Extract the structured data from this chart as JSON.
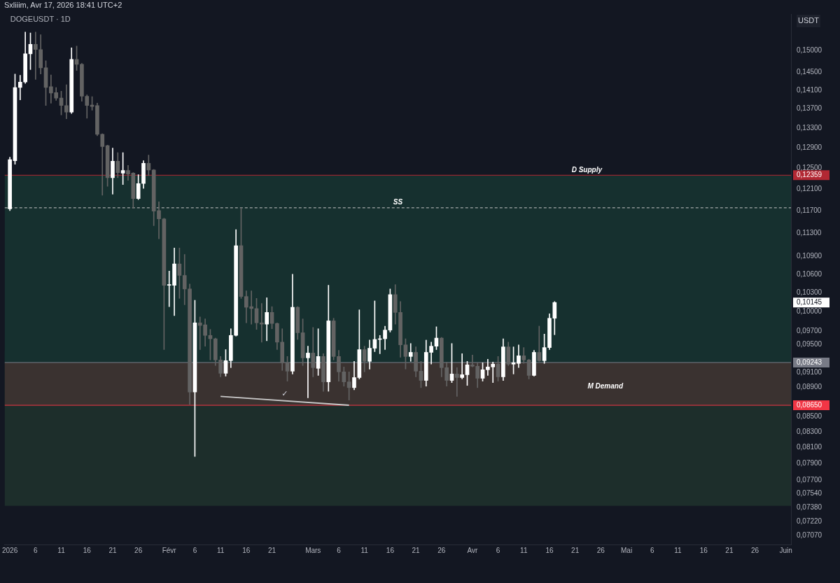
{
  "chart_data": {
    "type": "candlestick",
    "title": "DOGEUSDT · 1D",
    "ylabel": "USDT",
    "annotations": [
      "Sxliiim, Avr 17, 2026 18:41 UTC+2",
      "✓"
    ],
    "x": [
      "2026-01-01",
      "2026-01-02",
      "2026-01-03",
      "2026-01-04",
      "2026-01-05",
      "2026-01-06",
      "2026-01-07",
      "2026-01-08",
      "2026-01-09",
      "2026-01-10",
      "2026-01-11",
      "2026-01-12",
      "2026-01-13",
      "2026-01-14",
      "2026-01-15",
      "2026-01-16",
      "2026-01-17",
      "2026-01-18",
      "2026-01-19",
      "2026-01-20",
      "2026-01-21",
      "2026-01-22",
      "2026-01-23",
      "2026-01-24",
      "2026-01-25",
      "2026-01-26",
      "2026-01-27",
      "2026-01-28",
      "2026-01-29",
      "2026-01-30",
      "2026-01-31",
      "2026-02-01",
      "2026-02-02",
      "2026-02-03",
      "2026-02-04",
      "2026-02-05",
      "2026-02-06",
      "2026-02-07",
      "2026-02-08",
      "2026-02-09",
      "2026-02-10",
      "2026-02-11",
      "2026-02-12",
      "2026-02-13",
      "2026-02-14",
      "2026-02-15",
      "2026-02-16",
      "2026-02-17",
      "2026-02-18",
      "2026-02-19",
      "2026-02-20",
      "2026-02-21",
      "2026-02-22",
      "2026-02-23",
      "2026-02-24",
      "2026-02-25",
      "2026-02-26",
      "2026-02-27",
      "2026-02-28",
      "2026-03-01",
      "2026-03-02",
      "2026-03-03",
      "2026-03-04",
      "2026-03-05",
      "2026-03-06",
      "2026-03-07",
      "2026-03-08",
      "2026-03-09",
      "2026-03-10",
      "2026-03-11",
      "2026-03-12",
      "2026-03-13",
      "2026-03-14",
      "2026-03-15",
      "2026-03-16",
      "2026-03-17",
      "2026-03-18",
      "2026-03-19",
      "2026-03-20",
      "2026-03-21",
      "2026-03-22",
      "2026-03-23",
      "2026-03-24",
      "2026-03-25",
      "2026-03-26",
      "2026-03-27",
      "2026-03-28",
      "2026-03-29",
      "2026-03-30",
      "2026-03-31",
      "2026-04-01",
      "2026-04-02",
      "2026-04-03",
      "2026-04-04",
      "2026-04-05",
      "2026-04-06",
      "2026-04-07",
      "2026-04-08",
      "2026-04-09",
      "2026-04-10",
      "2026-04-11",
      "2026-04-12",
      "2026-04-13",
      "2026-04-14",
      "2026-04-15",
      "2026-04-16",
      "2026-04-17"
    ],
    "ohlc": [
      [
        0.1173,
        0.1271,
        0.117,
        0.1266
      ],
      [
        0.1264,
        0.1446,
        0.1257,
        0.1416
      ],
      [
        0.1416,
        0.1443,
        0.1389,
        0.1428
      ],
      [
        0.1428,
        0.1543,
        0.1425,
        0.1492
      ],
      [
        0.1492,
        0.1541,
        0.1456,
        0.1514
      ],
      [
        0.1514,
        0.1543,
        0.1434,
        0.1502
      ],
      [
        0.1502,
        0.1537,
        0.1446,
        0.146
      ],
      [
        0.146,
        0.1476,
        0.1377,
        0.1416
      ],
      [
        0.1418,
        0.1444,
        0.1382,
        0.1404
      ],
      [
        0.1405,
        0.1416,
        0.1388,
        0.1393
      ],
      [
        0.1393,
        0.1408,
        0.1357,
        0.1377
      ],
      [
        0.1377,
        0.1422,
        0.1349,
        0.1363
      ],
      [
        0.1363,
        0.1506,
        0.136,
        0.1479
      ],
      [
        0.1479,
        0.151,
        0.1454,
        0.1468
      ],
      [
        0.1468,
        0.147,
        0.1386,
        0.1397
      ],
      [
        0.1397,
        0.14,
        0.135,
        0.1377
      ],
      [
        0.1378,
        0.1396,
        0.1367,
        0.1375
      ],
      [
        0.1377,
        0.1382,
        0.1314,
        0.1317
      ],
      [
        0.1317,
        0.1318,
        0.1198,
        0.1292
      ],
      [
        0.1294,
        0.1295,
        0.1215,
        0.1231
      ],
      [
        0.1231,
        0.1289,
        0.12,
        0.1263
      ],
      [
        0.1263,
        0.128,
        0.1231,
        0.1241
      ],
      [
        0.124,
        0.128,
        0.1218,
        0.1245
      ],
      [
        0.1245,
        0.1255,
        0.1226,
        0.1238
      ],
      [
        0.124,
        0.1241,
        0.1174,
        0.1192
      ],
      [
        0.1192,
        0.1237,
        0.119,
        0.122
      ],
      [
        0.122,
        0.1264,
        0.1211,
        0.1259
      ],
      [
        0.1259,
        0.1275,
        0.1235,
        0.1246
      ],
      [
        0.1246,
        0.1247,
        0.1143,
        0.1169
      ],
      [
        0.117,
        0.1186,
        0.112,
        0.1155
      ],
      [
        0.1155,
        0.1156,
        0.0943,
        0.1042
      ],
      [
        0.1042,
        0.1065,
        0.1008,
        0.1043
      ],
      [
        0.1042,
        0.1104,
        0.0994,
        0.1077
      ],
      [
        0.1077,
        0.1104,
        0.1021,
        0.1058
      ],
      [
        0.1058,
        0.1093,
        0.1011,
        0.1036
      ],
      [
        0.1036,
        0.1044,
        0.0866,
        0.0883
      ],
      [
        0.0883,
        0.1018,
        0.0799,
        0.0983
      ],
      [
        0.0983,
        0.0992,
        0.0943,
        0.0979
      ],
      [
        0.098,
        0.0989,
        0.0948,
        0.0964
      ],
      [
        0.0964,
        0.0973,
        0.0928,
        0.0959
      ],
      [
        0.0959,
        0.096,
        0.092,
        0.0928
      ],
      [
        0.0928,
        0.0933,
        0.0904,
        0.0909
      ],
      [
        0.0909,
        0.0943,
        0.0905,
        0.0927
      ],
      [
        0.0927,
        0.0974,
        0.0917,
        0.0964
      ],
      [
        0.0964,
        0.1136,
        0.0963,
        0.1108
      ],
      [
        0.1108,
        0.1175,
        0.1021,
        0.1024
      ],
      [
        0.1024,
        0.1033,
        0.0983,
        0.1007
      ],
      [
        0.1008,
        0.1033,
        0.0981,
        0.1005
      ],
      [
        0.1005,
        0.1021,
        0.0973,
        0.0983
      ],
      [
        0.0983,
        0.1013,
        0.0954,
        0.0981
      ],
      [
        0.0981,
        0.1022,
        0.0956,
        0.0999
      ],
      [
        0.0999,
        0.1008,
        0.0974,
        0.0982
      ],
      [
        0.0982,
        0.0983,
        0.0943,
        0.0954
      ],
      [
        0.0954,
        0.0974,
        0.0913,
        0.0924
      ],
      [
        0.0924,
        0.0933,
        0.0898,
        0.0912
      ],
      [
        0.0912,
        0.106,
        0.0908,
        0.1007
      ],
      [
        0.1007,
        0.1008,
        0.0958,
        0.0968
      ],
      [
        0.0968,
        0.0989,
        0.092,
        0.0931
      ],
      [
        0.0931,
        0.0948,
        0.0875,
        0.0938
      ],
      [
        0.0938,
        0.0976,
        0.0904,
        0.0917
      ],
      [
        0.0916,
        0.0974,
        0.0906,
        0.0933
      ],
      [
        0.0933,
        0.0937,
        0.0884,
        0.0897
      ],
      [
        0.0897,
        0.1042,
        0.0884,
        0.0986
      ],
      [
        0.0986,
        0.099,
        0.0928,
        0.0933
      ],
      [
        0.0933,
        0.0942,
        0.0898,
        0.0911
      ],
      [
        0.0911,
        0.0918,
        0.0891,
        0.0897
      ],
      [
        0.0897,
        0.0911,
        0.0872,
        0.0889
      ],
      [
        0.0889,
        0.0926,
        0.0886,
        0.0903
      ],
      [
        0.0903,
        0.1003,
        0.0901,
        0.0943
      ],
      [
        0.0943,
        0.0948,
        0.0911,
        0.0926
      ],
      [
        0.0926,
        0.0957,
        0.0915,
        0.0945
      ],
      [
        0.0945,
        0.1017,
        0.094,
        0.0958
      ],
      [
        0.0958,
        0.0964,
        0.0937,
        0.0959
      ],
      [
        0.0959,
        0.0978,
        0.0943,
        0.0972
      ],
      [
        0.0972,
        0.1036,
        0.0969,
        0.1027
      ],
      [
        0.1027,
        0.1043,
        0.0981,
        0.0999
      ],
      [
        0.0999,
        0.1016,
        0.0932,
        0.095
      ],
      [
        0.095,
        0.0959,
        0.0915,
        0.0933
      ],
      [
        0.0933,
        0.0952,
        0.0926,
        0.0939
      ],
      [
        0.0939,
        0.0947,
        0.0904,
        0.0912
      ],
      [
        0.0912,
        0.0926,
        0.0889,
        0.0899
      ],
      [
        0.0899,
        0.0957,
        0.0891,
        0.0939
      ],
      [
        0.0939,
        0.0954,
        0.0922,
        0.0948
      ],
      [
        0.0948,
        0.0977,
        0.0943,
        0.096
      ],
      [
        0.096,
        0.0961,
        0.0904,
        0.0917
      ],
      [
        0.0917,
        0.0925,
        0.0891,
        0.0899
      ],
      [
        0.0899,
        0.0952,
        0.0896,
        0.0908
      ],
      [
        0.0908,
        0.0917,
        0.0877,
        0.0903
      ],
      [
        0.0903,
        0.0937,
        0.0901,
        0.0907
      ],
      [
        0.0907,
        0.0926,
        0.0892,
        0.0921
      ],
      [
        0.0921,
        0.0935,
        0.0918,
        0.0919
      ],
      [
        0.0919,
        0.0924,
        0.0889,
        0.0902
      ],
      [
        0.0902,
        0.0924,
        0.0898,
        0.0914
      ],
      [
        0.0914,
        0.0929,
        0.0906,
        0.0918
      ],
      [
        0.0918,
        0.0925,
        0.0896,
        0.0922
      ],
      [
        0.0922,
        0.0933,
        0.0898,
        0.0904
      ],
      [
        0.0904,
        0.0959,
        0.0899,
        0.0947
      ],
      [
        0.0947,
        0.0954,
        0.092,
        0.0922
      ],
      [
        0.0922,
        0.0947,
        0.0908,
        0.0924
      ],
      [
        0.0923,
        0.095,
        0.0917,
        0.0934
      ],
      [
        0.0934,
        0.0946,
        0.0923,
        0.0928
      ],
      [
        0.0928,
        0.0929,
        0.0901,
        0.0906
      ],
      [
        0.0906,
        0.0942,
        0.0905,
        0.0939
      ],
      [
        0.0939,
        0.0978,
        0.0926,
        0.0927
      ],
      [
        0.0927,
        0.0966,
        0.0923,
        0.0946
      ],
      [
        0.0946,
        0.0997,
        0.0943,
        0.099
      ],
      [
        0.099,
        0.1016,
        0.0965,
        0.10145
      ]
    ],
    "colors": [
      "#ffffff",
      "#ffffff",
      "#ffffff",
      "#ffffff",
      "#ffffff",
      "#636363",
      "#636363",
      "#636363",
      "#636363",
      "#636363",
      "#636363",
      "#636363",
      "#ffffff",
      "#636363",
      "#636363",
      "#636363",
      "#636363",
      "#636363",
      "#636363",
      "#636363",
      "#ffffff",
      "#636363",
      "#ffffff",
      "#636363",
      "#636363",
      "#ffffff",
      "#ffffff",
      "#636363",
      "#636363",
      "#636363",
      "#636363",
      "#ffffff",
      "#ffffff",
      "#636363",
      "#636363",
      "#636363",
      "#ffffff",
      "#636363",
      "#636363",
      "#636363",
      "#636363",
      "#636363",
      "#ffffff",
      "#ffffff",
      "#ffffff",
      "#636363",
      "#636363",
      "#636363",
      "#636363",
      "#636363",
      "#ffffff",
      "#636363",
      "#636363",
      "#636363",
      "#636363",
      "#ffffff",
      "#636363",
      "#636363",
      "#ffffff",
      "#636363",
      "#ffffff",
      "#636363",
      "#ffffff",
      "#636363",
      "#636363",
      "#636363",
      "#636363",
      "#ffffff",
      "#ffffff",
      "#636363",
      "#ffffff",
      "#ffffff",
      "#ffffff",
      "#ffffff",
      "#ffffff",
      "#636363",
      "#636363",
      "#636363",
      "#ffffff",
      "#636363",
      "#636363",
      "#ffffff",
      "#ffffff",
      "#ffffff",
      "#636363",
      "#636363",
      "#ffffff",
      "#636363",
      "#ffffff",
      "#ffffff",
      "#636363",
      "#636363",
      "#ffffff",
      "#ffffff",
      "#ffffff",
      "#636363",
      "#ffffff",
      "#636363",
      "#ffffff",
      "#ffffff",
      "#636363",
      "#636363",
      "#ffffff",
      "#636363",
      "#ffffff",
      "#ffffff",
      "#ffffff"
    ],
    "series": [
      {
        "type": "line",
        "x": [
          "2026-02-11",
          "2026-03-08"
        ],
        "values": [
          0.0877,
          0.0865
        ],
        "color": "#c8c8c8"
      }
    ],
    "bands": [
      {
        "axis": "y",
        "from": 0.074,
        "to": 0.0941,
        "label": "M Demand",
        "color": "#1d2e2b"
      },
      {
        "axis": "y",
        "from": 0.09243,
        "to": 0.12359,
        "color": "#16302f"
      },
      {
        "axis": "y",
        "from": 0.0865,
        "to": 0.09243,
        "color": "#3a3230"
      }
    ],
    "ref_lines": [
      {
        "axis": "y",
        "value": 0.12359,
        "label": "D Supply",
        "color": "#b22833",
        "line_style": "solid"
      },
      {
        "axis": "y",
        "value": 0.1175,
        "label": "SS",
        "color": "#c8c8c8",
        "line_style": "dashed"
      },
      {
        "axis": "y",
        "value": 0.09243,
        "label": null,
        "color": "#787b86",
        "line_style": "solid"
      },
      {
        "axis": "y",
        "value": 0.0865,
        "label": null,
        "color": "#f23645",
        "line_style": "solid"
      }
    ],
    "log": "y",
    "xlim": [
      "2025-12-31",
      "2026-06-02"
    ],
    "xticks": [
      {
        "value": "2026-01-01",
        "label": "2026"
      },
      {
        "value": "2026-01-06",
        "label": "6"
      },
      {
        "value": "2026-01-11",
        "label": "11"
      },
      {
        "value": "2026-01-16",
        "label": "16"
      },
      {
        "value": "2026-01-21",
        "label": "21"
      },
      {
        "value": "2026-01-26",
        "label": "26"
      },
      {
        "value": "2026-02-01",
        "label": "Févr"
      },
      {
        "value": "2026-02-06",
        "label": "6"
      },
      {
        "value": "2026-02-11",
        "label": "11"
      },
      {
        "value": "2026-02-16",
        "label": "16"
      },
      {
        "value": "2026-02-21",
        "label": "21"
      },
      {
        "value": "2026-03-01",
        "label": "Mars"
      },
      {
        "value": "2026-03-06",
        "label": "6"
      },
      {
        "value": "2026-03-11",
        "label": "11"
      },
      {
        "value": "2026-03-16",
        "label": "16"
      },
      {
        "value": "2026-03-21",
        "label": "21"
      },
      {
        "value": "2026-03-26",
        "label": "26"
      },
      {
        "value": "2026-04-01",
        "label": "Avr"
      },
      {
        "value": "2026-04-06",
        "label": "6"
      },
      {
        "value": "2026-04-11",
        "label": "11"
      },
      {
        "value": "2026-04-16",
        "label": "16"
      },
      {
        "value": "2026-04-21",
        "label": "21"
      },
      {
        "value": "2026-04-26",
        "label": "26"
      },
      {
        "value": "2026-05-01",
        "label": "Mai"
      },
      {
        "value": "2026-05-06",
        "label": "6"
      },
      {
        "value": "2026-05-11",
        "label": "11"
      },
      {
        "value": "2026-05-16",
        "label": "16"
      },
      {
        "value": "2026-05-21",
        "label": "21"
      },
      {
        "value": "2026-05-26",
        "label": "26"
      },
      {
        "value": "2026-06-01",
        "label": "Juin"
      }
    ],
    "ylim": [
      0.0697,
      0.1587
    ],
    "yticks": [
      {
        "value": 0.15,
        "label": "0,15000"
      },
      {
        "value": 0.145,
        "label": "0,14500"
      },
      {
        "value": 0.141,
        "label": "0,14100"
      },
      {
        "value": 0.137,
        "label": "0,13700"
      },
      {
        "value": 0.133,
        "label": "0,13300"
      },
      {
        "value": 0.129,
        "label": "0,12900"
      },
      {
        "value": 0.125,
        "label": "0,12500"
      },
      {
        "value": 0.12359,
        "label": "0,12359"
      },
      {
        "value": 0.121,
        "label": "0,12100"
      },
      {
        "value": 0.117,
        "label": "0,11700"
      },
      {
        "value": 0.113,
        "label": "0,11300"
      },
      {
        "value": 0.109,
        "label": "0,10900"
      },
      {
        "value": 0.106,
        "label": "0,10600"
      },
      {
        "value": 0.103,
        "label": "0,10300"
      },
      {
        "value": 0.10145,
        "label": "0,10145"
      },
      {
        "value": 0.1,
        "label": "0,10000"
      },
      {
        "value": 0.097,
        "label": "0,09700"
      },
      {
        "value": 0.095,
        "label": "0,09500"
      },
      {
        "value": 0.09243,
        "label": "0,09243"
      },
      {
        "value": 0.091,
        "label": "0,09100"
      },
      {
        "value": 0.089,
        "label": "0,08900"
      },
      {
        "value": 0.0865,
        "label": "0,08650"
      },
      {
        "value": 0.085,
        "label": "0,08500"
      },
      {
        "value": 0.083,
        "label": "0,08300"
      },
      {
        "value": 0.081,
        "label": "0,08100"
      },
      {
        "value": 0.079,
        "label": "0,07900"
      },
      {
        "value": 0.077,
        "label": "0,07700"
      },
      {
        "value": 0.0754,
        "label": "0,07540"
      },
      {
        "value": 0.0738,
        "label": "0,07380"
      },
      {
        "value": 0.0722,
        "label": "0,07220"
      },
      {
        "value": 0.0707,
        "label": "0,07070"
      }
    ]
  }
}
